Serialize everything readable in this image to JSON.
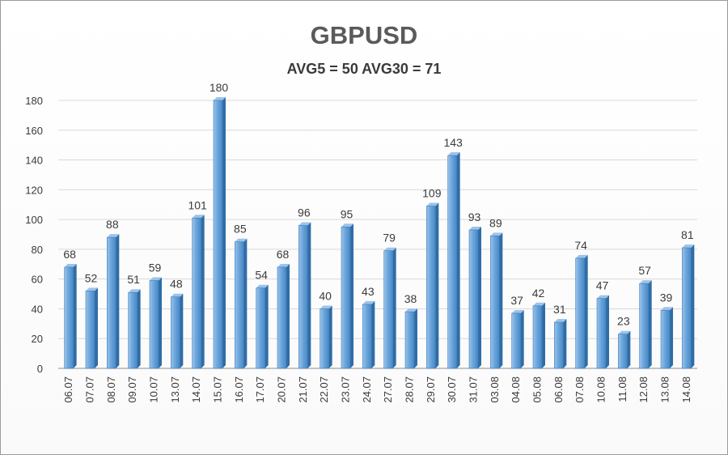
{
  "chart_data": {
    "type": "bar",
    "title": "GBPUSD",
    "subtitle": "AVG5 = 50 AVG30 = 71",
    "xlabel": "",
    "ylabel": "",
    "ylim": [
      0,
      180
    ],
    "yticks": [
      0,
      20,
      40,
      60,
      80,
      100,
      120,
      140,
      160,
      180
    ],
    "grid": true,
    "legend": "none",
    "categories": [
      "06.07",
      "07.07",
      "08.07",
      "09.07",
      "10.07",
      "13.07",
      "14.07",
      "15.07",
      "16.07",
      "17.07",
      "20.07",
      "21.07",
      "22.07",
      "23.07",
      "24.07",
      "27.07",
      "28.07",
      "29.07",
      "30.07",
      "31.07",
      "03.08",
      "04.08",
      "05.08",
      "06.08",
      "07.08",
      "10.08",
      "11.08",
      "12.08",
      "13.08",
      "14.08"
    ],
    "values": [
      68,
      52,
      88,
      51,
      59,
      48,
      101,
      180,
      85,
      54,
      68,
      96,
      40,
      95,
      43,
      79,
      38,
      109,
      143,
      93,
      89,
      37,
      42,
      31,
      74,
      47,
      23,
      57,
      39,
      81
    ],
    "colors": {
      "bar": "#5b9bd5",
      "bar_light": "#9cc3ea",
      "bar_dark": "#2f6da5",
      "grid": "#d9d9d9",
      "axis": "#8c8c8c"
    }
  }
}
